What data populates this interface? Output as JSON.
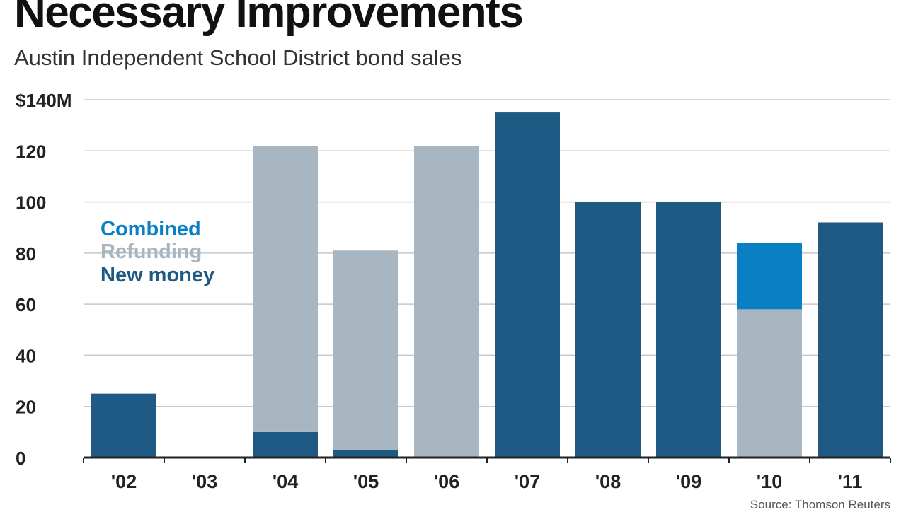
{
  "title": "Necessary Improvements",
  "subtitle": "Austin Independent School District bond sales",
  "source": "Source: Thomson Reuters",
  "colors": {
    "combined": "#0b7fc4",
    "refunding": "#a8b6c1",
    "new_money": "#1f5a85",
    "grid": "#c8c8c8",
    "axis": "#222222"
  },
  "chart_data": {
    "type": "bar",
    "stacked": true,
    "title": "Necessary Improvements",
    "subtitle": "Austin Independent School District bond sales",
    "categories": [
      "'02",
      "'03",
      "'04",
      "'05",
      "'06",
      "'07",
      "'08",
      "'09",
      "'10",
      "'11"
    ],
    "series": [
      {
        "name": "New money",
        "color": "#1f5a85",
        "values": [
          25,
          0,
          10,
          3,
          0,
          135,
          100,
          100,
          0,
          92
        ]
      },
      {
        "name": "Refunding",
        "color": "#a8b6c1",
        "values": [
          0,
          0,
          112,
          78,
          122,
          0,
          0,
          0,
          58,
          0
        ]
      },
      {
        "name": "Combined",
        "color": "#0b7fc4",
        "values": [
          0,
          0,
          0,
          0,
          0,
          0,
          0,
          0,
          26,
          0
        ]
      }
    ],
    "ylim": [
      0,
      140
    ],
    "y_ticks": [
      "0",
      "20",
      "40",
      "60",
      "80",
      "100",
      "120",
      "$140M"
    ],
    "y_tick_values": [
      0,
      20,
      40,
      60,
      80,
      100,
      120,
      140
    ],
    "grid": true,
    "legend": [
      "Combined",
      "Refunding",
      "New money"
    ],
    "legend_placement": "left, inside plot"
  }
}
